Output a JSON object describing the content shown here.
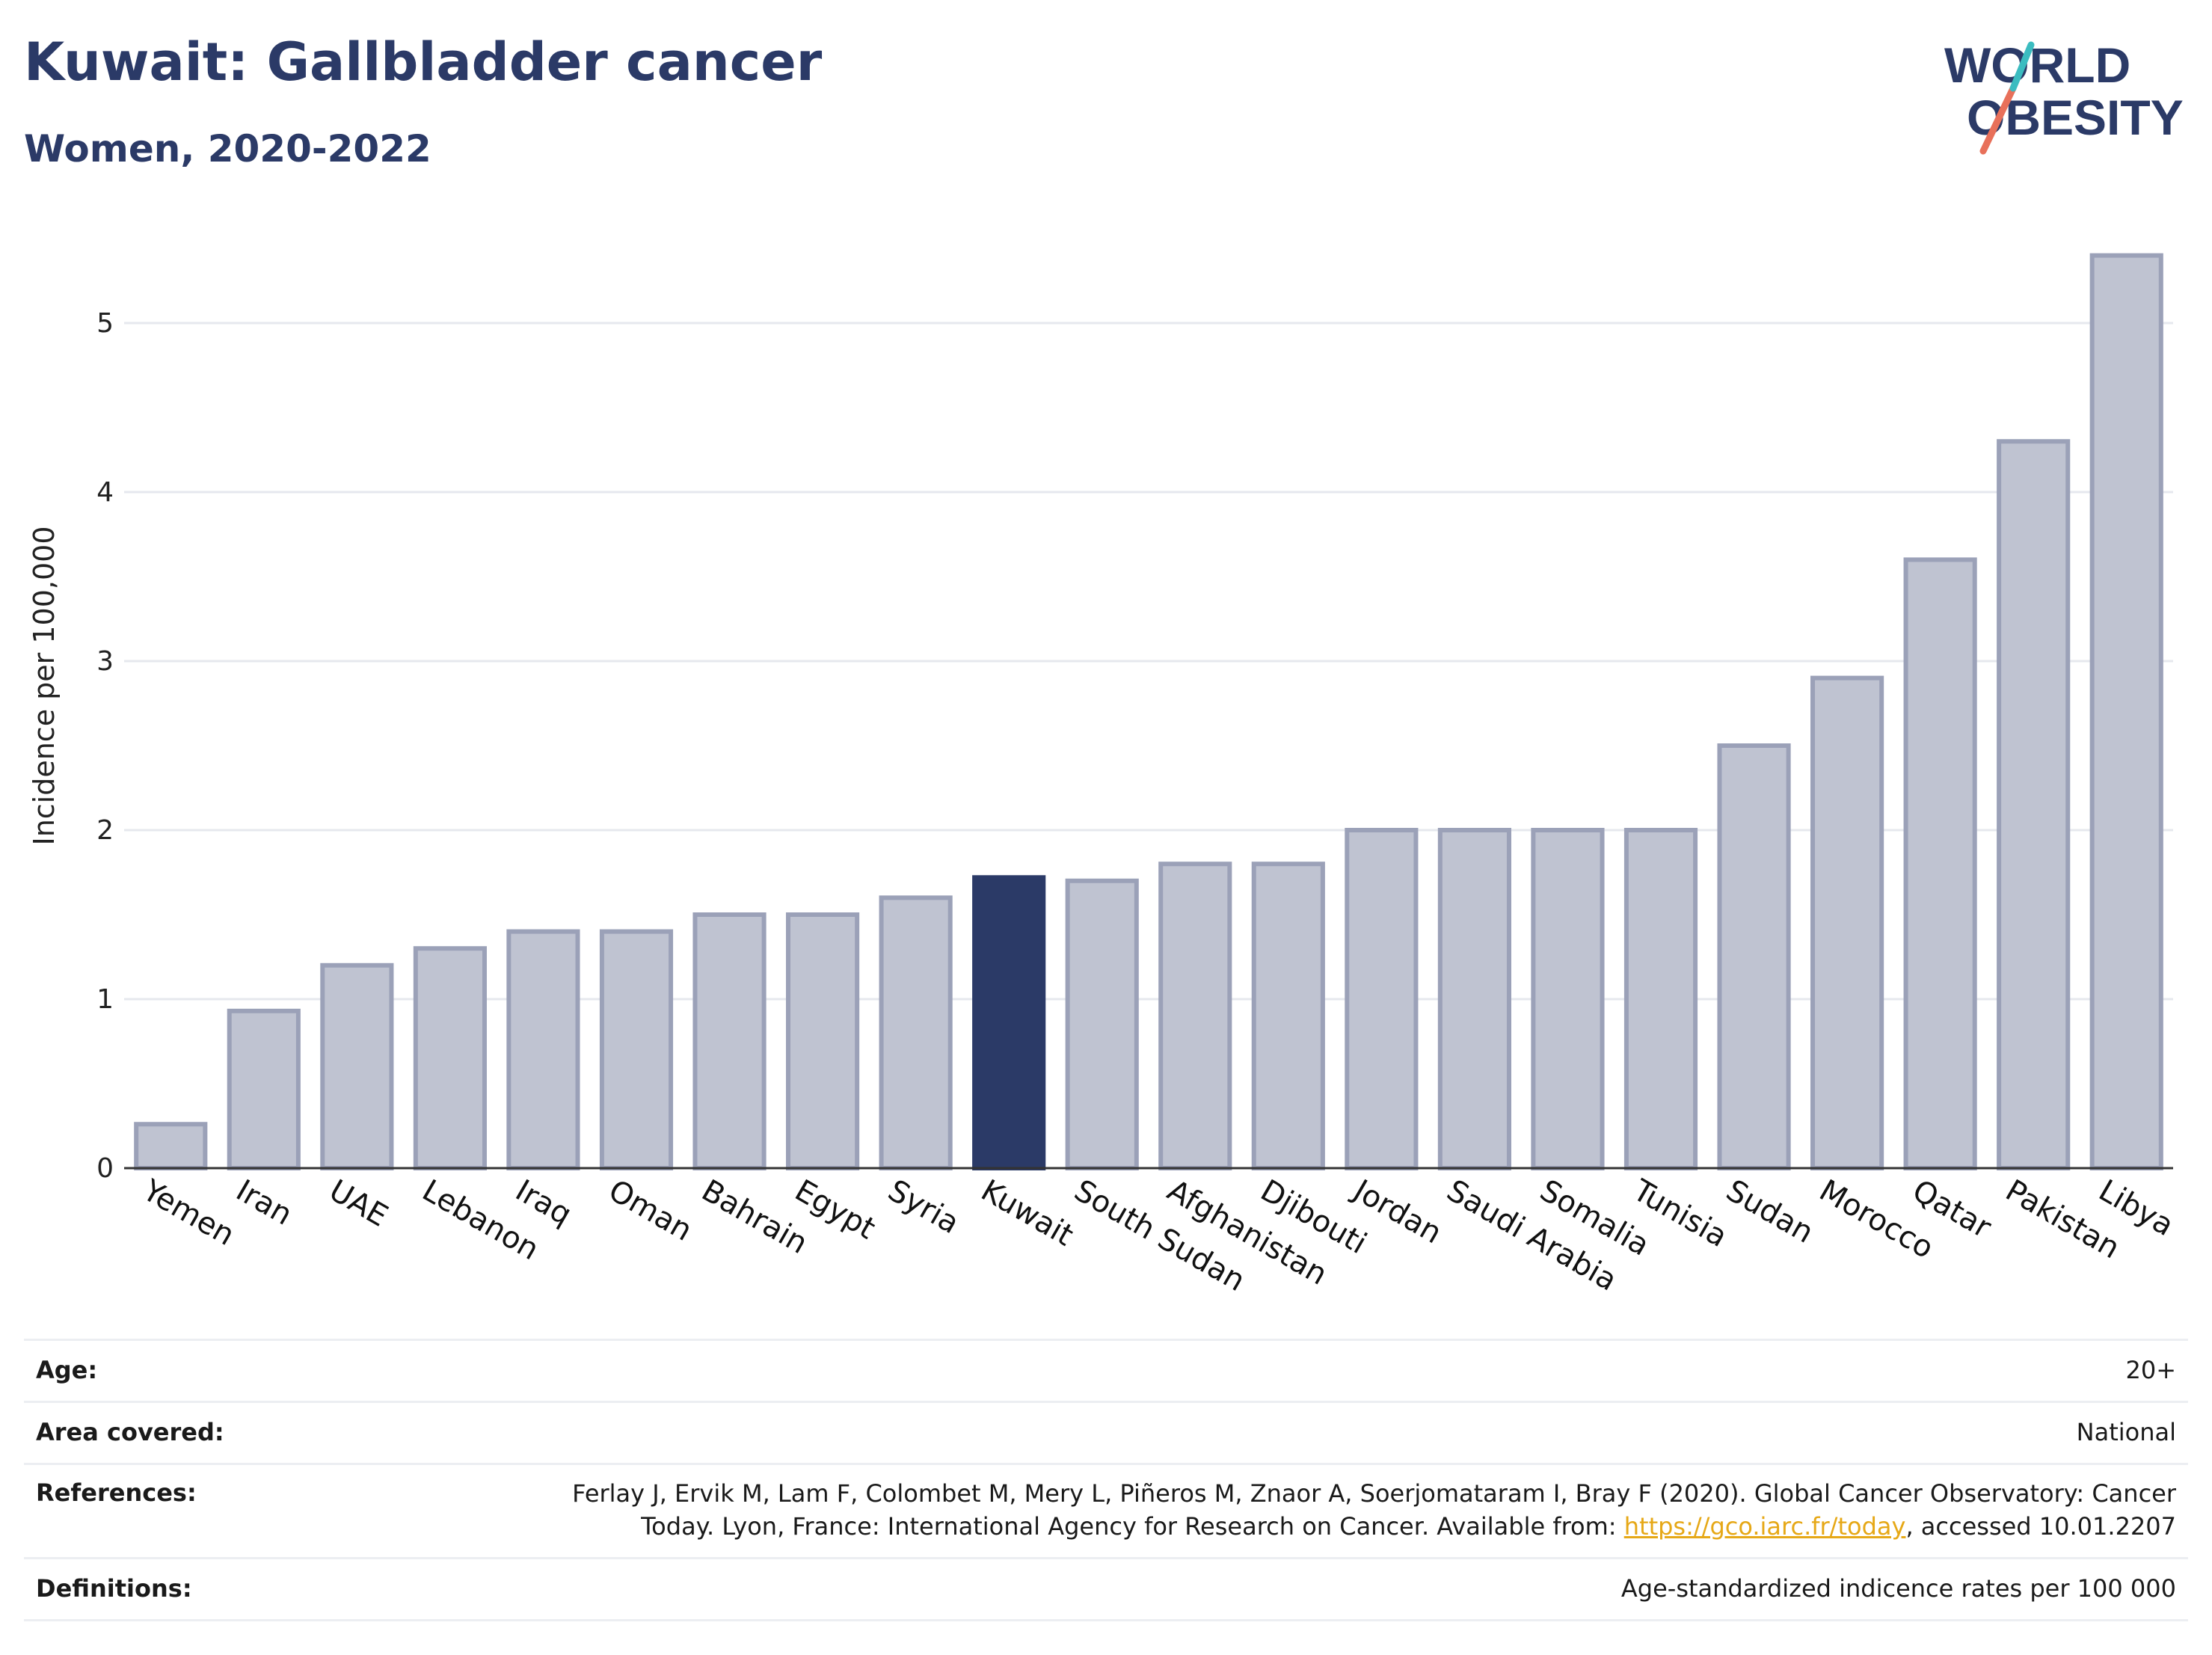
{
  "header": {
    "title": "Kuwait: Gallbladder cancer",
    "subtitle": "Women, 2020-2022"
  },
  "logo": {
    "line1": "WORLD",
    "line2": "OBESITY",
    "colors": {
      "text": "#2b3a67",
      "slash_red": "#e8705a",
      "slash_teal": "#3bbcc0"
    }
  },
  "chart_data": {
    "type": "bar",
    "title": "",
    "xlabel": "",
    "ylabel": "Incidence per 100,000",
    "ylim": [
      0,
      5.6
    ],
    "yticks": [
      0,
      1,
      2,
      3,
      4,
      5
    ],
    "grid": true,
    "highlight": "Kuwait",
    "colors": {
      "bar": "#bfc3d1",
      "bar_stroke": "#9ba1b8",
      "highlight": "#2b3a67",
      "grid": "#e6e8ee"
    },
    "categories": [
      "Yemen",
      "Iran",
      "UAE",
      "Lebanon",
      "Iraq",
      "Oman",
      "Bahrain",
      "Egypt",
      "Syria",
      "Kuwait",
      "South Sudan",
      "Afghanistan",
      "Djibouti",
      "Jordan",
      "Saudi Arabia",
      "Somalia",
      "Tunisia",
      "Sudan",
      "Morocco",
      "Qatar",
      "Pakistan",
      "Libya"
    ],
    "values": [
      0.26,
      0.93,
      1.2,
      1.3,
      1.4,
      1.4,
      1.5,
      1.5,
      1.6,
      1.72,
      1.7,
      1.8,
      1.8,
      2.0,
      2.0,
      2.0,
      2.0,
      2.5,
      2.9,
      3.6,
      4.3,
      5.4
    ]
  },
  "info": {
    "age": {
      "label": "Age:",
      "value": "20+"
    },
    "area": {
      "label": "Area covered:",
      "value": "National"
    },
    "references": {
      "label": "References:",
      "line1": "Ferlay J, Ervik M, Lam F, Colombet M, Mery L, Piñeros M, Znaor A, Soerjomataram I, Bray F (2020). Global Cancer Observatory: Cancer",
      "line2_pre": "Today. Lyon, France: International Agency for Research on Cancer. Available from: ",
      "link": "https://gco.iarc.fr/today",
      "line2_post": ", accessed 10.01.2207"
    },
    "definitions": {
      "label": "Definitions:",
      "value": "Age-standardized indicence rates per 100 000"
    }
  }
}
